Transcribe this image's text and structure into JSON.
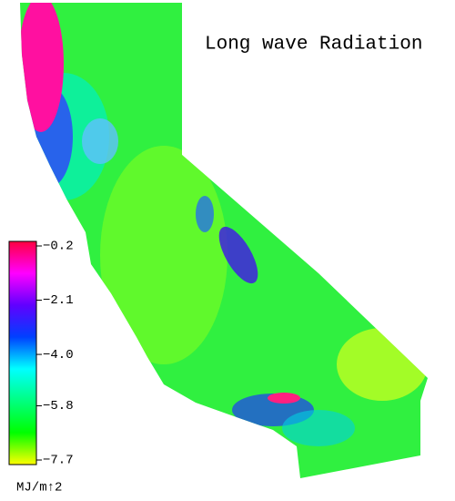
{
  "title": "Long wave Radiation",
  "colorbar": {
    "range": [
      -7.7,
      -0.2
    ],
    "ticks": [
      {
        "value": -0.2,
        "label": "−0.2"
      },
      {
        "value": -2.1,
        "label": "−2.1"
      },
      {
        "value": -4.0,
        "label": "−4.0"
      },
      {
        "value": -5.8,
        "label": "−5.8"
      },
      {
        "value": -7.7,
        "label": "−7.7"
      }
    ],
    "colors": [
      "#ff0040",
      "#ff00ff",
      "#6000ff",
      "#0040ff",
      "#00ffff",
      "#00ff80",
      "#00ff00",
      "#ffff00"
    ],
    "unit": "MJ/m↑2"
  }
}
